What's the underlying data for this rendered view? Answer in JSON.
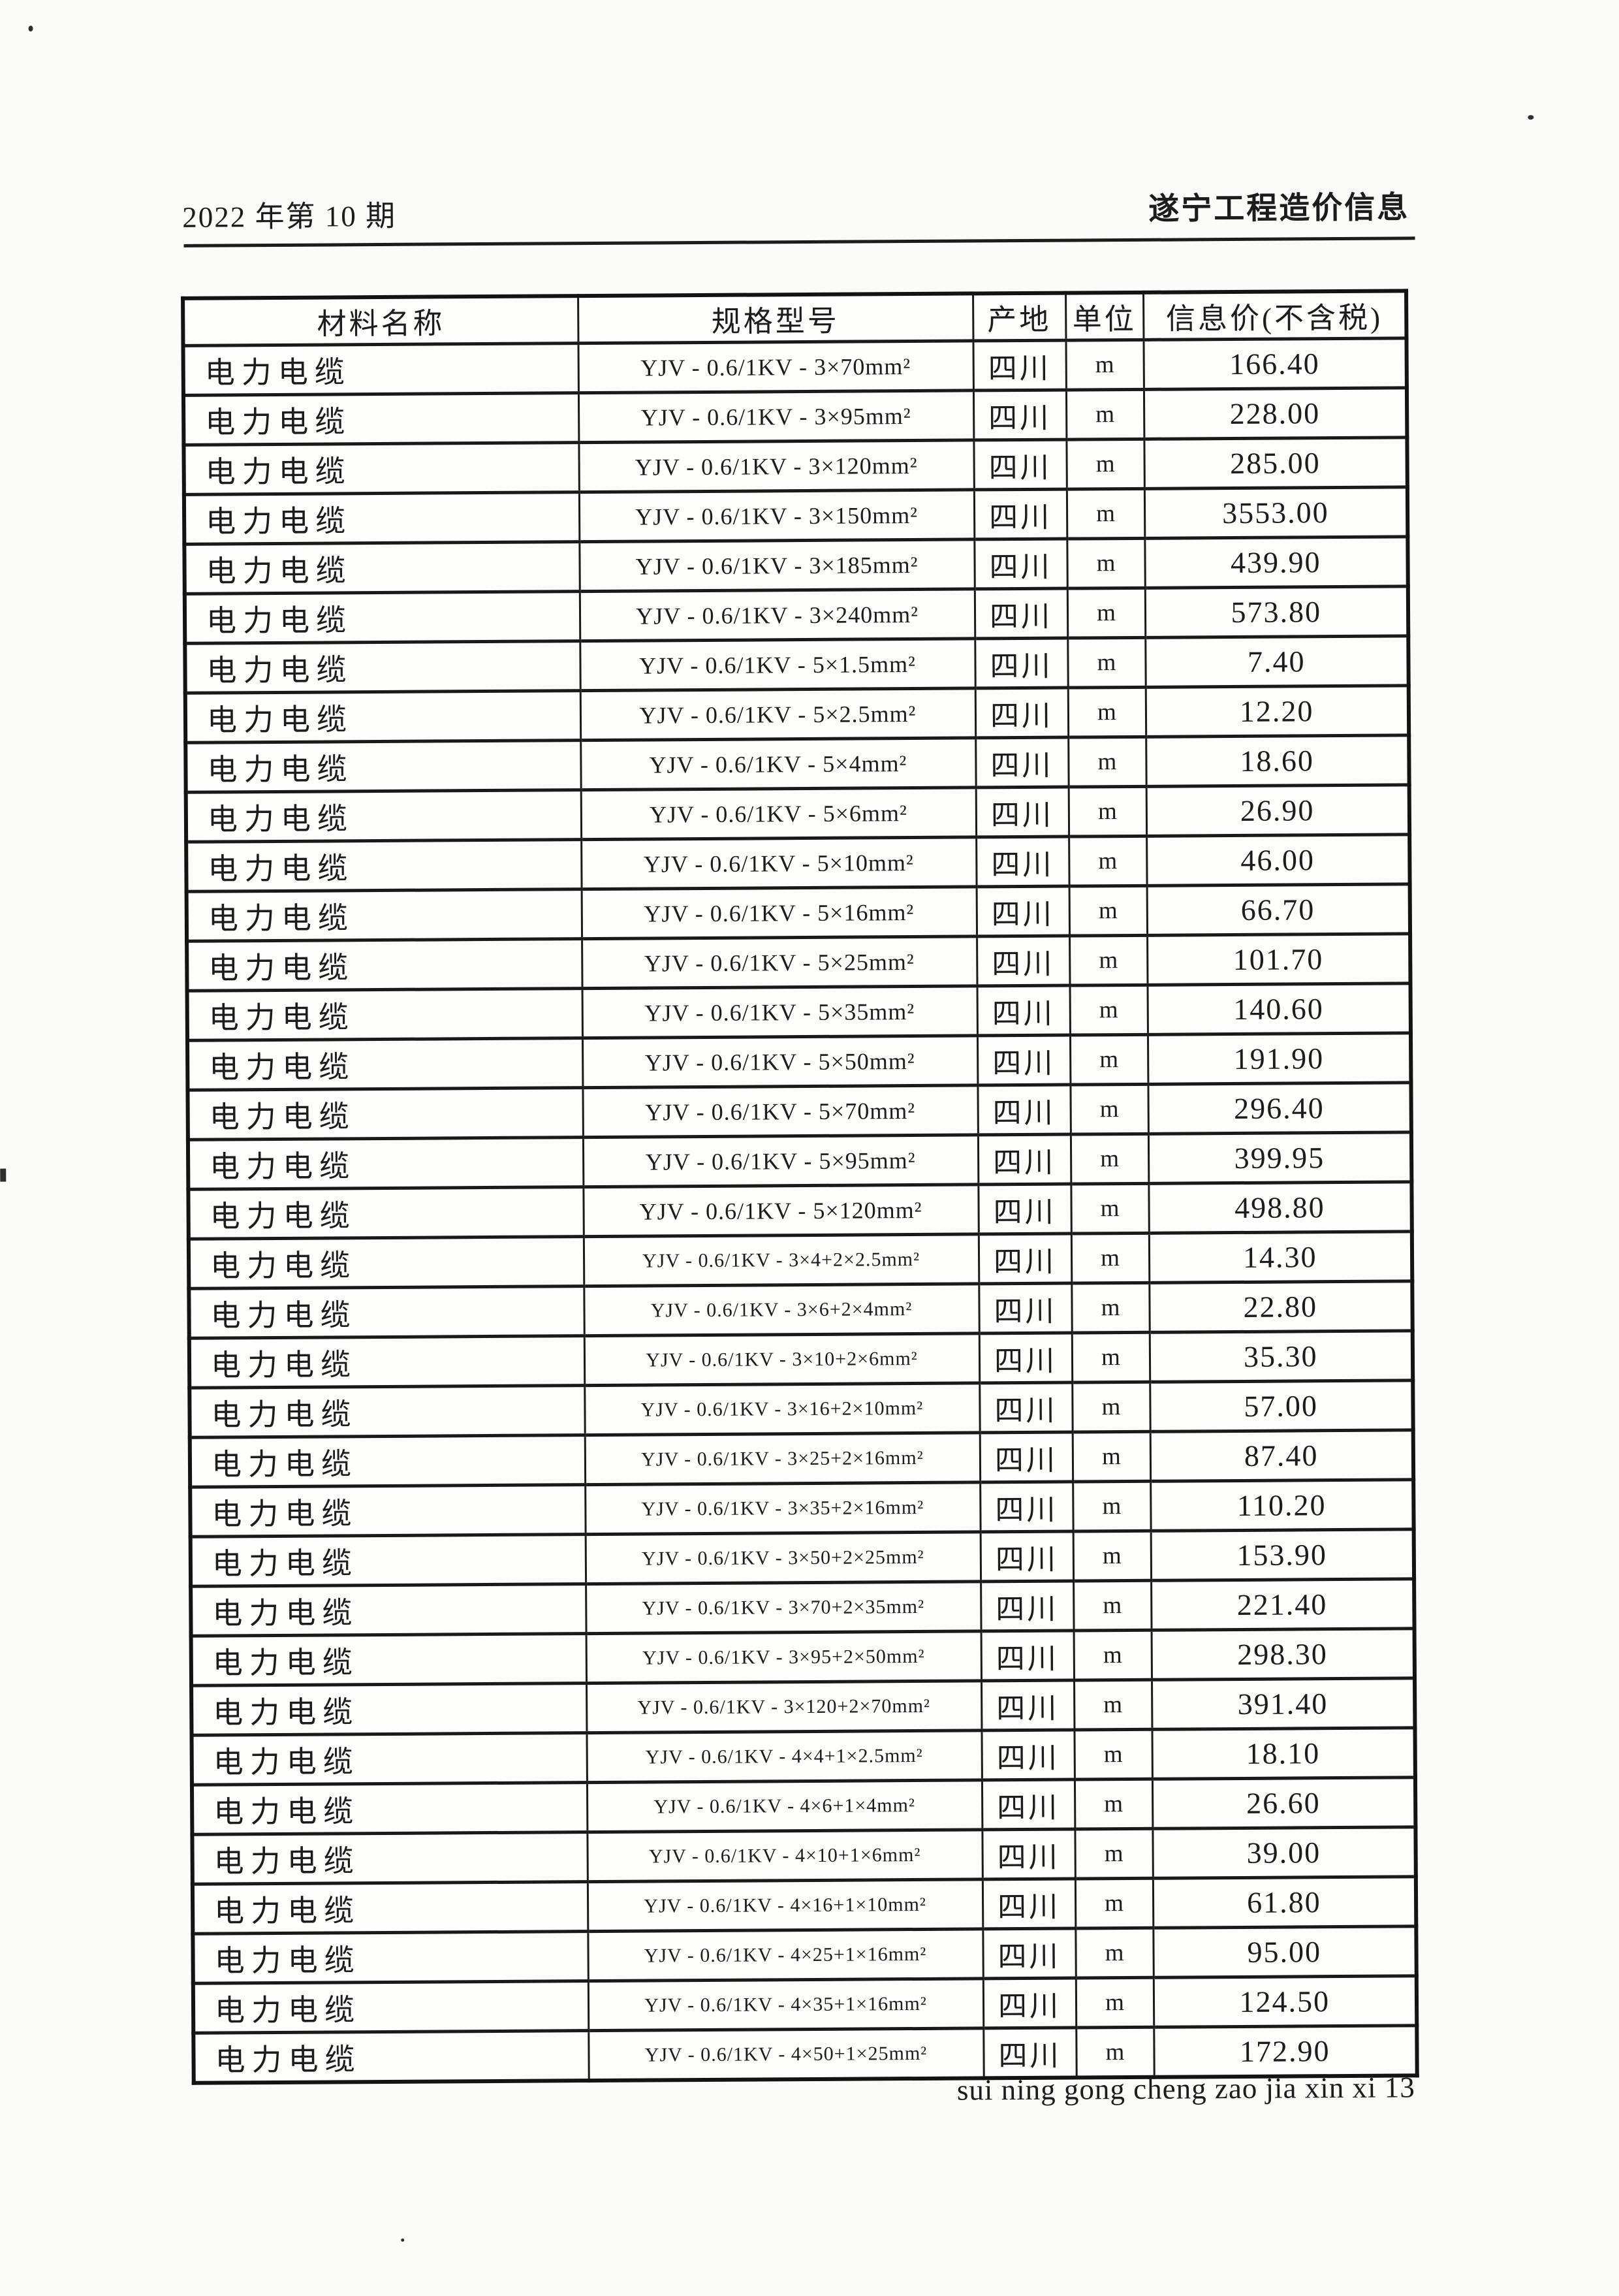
{
  "header": {
    "issue": "2022 年第 10 期",
    "publication": "遂宁工程造价信息"
  },
  "table": {
    "headers": [
      "材料名称",
      "规格型号",
      "产地",
      "单位",
      "信息价(不含税)"
    ],
    "rows": [
      {
        "name": "电力电缆",
        "spec": "YJV - 0.6/1KV - 3×70mm²",
        "origin": "四川",
        "unit": "m",
        "price": "166.40"
      },
      {
        "name": "电力电缆",
        "spec": "YJV - 0.6/1KV - 3×95mm²",
        "origin": "四川",
        "unit": "m",
        "price": "228.00"
      },
      {
        "name": "电力电缆",
        "spec": "YJV - 0.6/1KV - 3×120mm²",
        "origin": "四川",
        "unit": "m",
        "price": "285.00"
      },
      {
        "name": "电力电缆",
        "spec": "YJV - 0.6/1KV - 3×150mm²",
        "origin": "四川",
        "unit": "m",
        "price": "3553.00"
      },
      {
        "name": "电力电缆",
        "spec": "YJV - 0.6/1KV - 3×185mm²",
        "origin": "四川",
        "unit": "m",
        "price": "439.90"
      },
      {
        "name": "电力电缆",
        "spec": "YJV - 0.6/1KV - 3×240mm²",
        "origin": "四川",
        "unit": "m",
        "price": "573.80"
      },
      {
        "name": "电力电缆",
        "spec": "YJV - 0.6/1KV - 5×1.5mm²",
        "origin": "四川",
        "unit": "m",
        "price": "7.40"
      },
      {
        "name": "电力电缆",
        "spec": "YJV - 0.6/1KV - 5×2.5mm²",
        "origin": "四川",
        "unit": "m",
        "price": "12.20"
      },
      {
        "name": "电力电缆",
        "spec": "YJV - 0.6/1KV - 5×4mm²",
        "origin": "四川",
        "unit": "m",
        "price": "18.60"
      },
      {
        "name": "电力电缆",
        "spec": "YJV - 0.6/1KV - 5×6mm²",
        "origin": "四川",
        "unit": "m",
        "price": "26.90"
      },
      {
        "name": "电力电缆",
        "spec": "YJV - 0.6/1KV - 5×10mm²",
        "origin": "四川",
        "unit": "m",
        "price": "46.00"
      },
      {
        "name": "电力电缆",
        "spec": "YJV - 0.6/1KV - 5×16mm²",
        "origin": "四川",
        "unit": "m",
        "price": "66.70"
      },
      {
        "name": "电力电缆",
        "spec": "YJV - 0.6/1KV - 5×25mm²",
        "origin": "四川",
        "unit": "m",
        "price": "101.70"
      },
      {
        "name": "电力电缆",
        "spec": "YJV - 0.6/1KV - 5×35mm²",
        "origin": "四川",
        "unit": "m",
        "price": "140.60"
      },
      {
        "name": "电力电缆",
        "spec": "YJV - 0.6/1KV - 5×50mm²",
        "origin": "四川",
        "unit": "m",
        "price": "191.90"
      },
      {
        "name": "电力电缆",
        "spec": "YJV - 0.6/1KV - 5×70mm²",
        "origin": "四川",
        "unit": "m",
        "price": "296.40"
      },
      {
        "name": "电力电缆",
        "spec": "YJV - 0.6/1KV - 5×95mm²",
        "origin": "四川",
        "unit": "m",
        "price": "399.95"
      },
      {
        "name": "电力电缆",
        "spec": "YJV - 0.6/1KV - 5×120mm²",
        "origin": "四川",
        "unit": "m",
        "price": "498.80"
      },
      {
        "name": "电力电缆",
        "spec": "YJV - 0.6/1KV - 3×4+2×2.5mm²",
        "origin": "四川",
        "unit": "m",
        "price": "14.30"
      },
      {
        "name": "电力电缆",
        "spec": "YJV - 0.6/1KV - 3×6+2×4mm²",
        "origin": "四川",
        "unit": "m",
        "price": "22.80"
      },
      {
        "name": "电力电缆",
        "spec": "YJV - 0.6/1KV - 3×10+2×6mm²",
        "origin": "四川",
        "unit": "m",
        "price": "35.30"
      },
      {
        "name": "电力电缆",
        "spec": "YJV - 0.6/1KV - 3×16+2×10mm²",
        "origin": "四川",
        "unit": "m",
        "price": "57.00"
      },
      {
        "name": "电力电缆",
        "spec": "YJV - 0.6/1KV - 3×25+2×16mm²",
        "origin": "四川",
        "unit": "m",
        "price": "87.40"
      },
      {
        "name": "电力电缆",
        "spec": "YJV - 0.6/1KV - 3×35+2×16mm²",
        "origin": "四川",
        "unit": "m",
        "price": "110.20"
      },
      {
        "name": "电力电缆",
        "spec": "YJV - 0.6/1KV - 3×50+2×25mm²",
        "origin": "四川",
        "unit": "m",
        "price": "153.90"
      },
      {
        "name": "电力电缆",
        "spec": "YJV - 0.6/1KV - 3×70+2×35mm²",
        "origin": "四川",
        "unit": "m",
        "price": "221.40"
      },
      {
        "name": "电力电缆",
        "spec": "YJV - 0.6/1KV - 3×95+2×50mm²",
        "origin": "四川",
        "unit": "m",
        "price": "298.30"
      },
      {
        "name": "电力电缆",
        "spec": "YJV - 0.6/1KV - 3×120+2×70mm²",
        "origin": "四川",
        "unit": "m",
        "price": "391.40"
      },
      {
        "name": "电力电缆",
        "spec": "YJV - 0.6/1KV - 4×4+1×2.5mm²",
        "origin": "四川",
        "unit": "m",
        "price": "18.10"
      },
      {
        "name": "电力电缆",
        "spec": "YJV - 0.6/1KV - 4×6+1×4mm²",
        "origin": "四川",
        "unit": "m",
        "price": "26.60"
      },
      {
        "name": "电力电缆",
        "spec": "YJV - 0.6/1KV - 4×10+1×6mm²",
        "origin": "四川",
        "unit": "m",
        "price": "39.00"
      },
      {
        "name": "电力电缆",
        "spec": "YJV - 0.6/1KV - 4×16+1×10mm²",
        "origin": "四川",
        "unit": "m",
        "price": "61.80"
      },
      {
        "name": "电力电缆",
        "spec": "YJV - 0.6/1KV - 4×25+1×16mm²",
        "origin": "四川",
        "unit": "m",
        "price": "95.00"
      },
      {
        "name": "电力电缆",
        "spec": "YJV - 0.6/1KV - 4×35+1×16mm²",
        "origin": "四川",
        "unit": "m",
        "price": "124.50"
      },
      {
        "name": "电力电缆",
        "spec": "YJV - 0.6/1KV - 4×50+1×25mm²",
        "origin": "四川",
        "unit": "m",
        "price": "172.90"
      }
    ]
  },
  "footer": {
    "text": "sui ning gong cheng zao jia xin xi 13"
  }
}
